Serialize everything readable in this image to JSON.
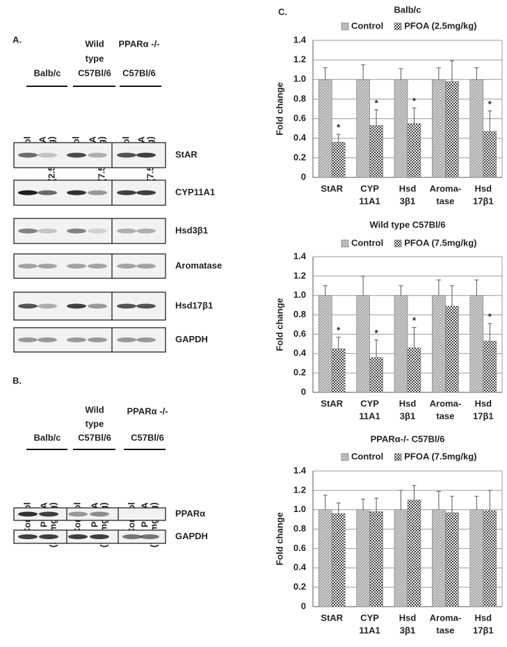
{
  "panel_a": {
    "label": "A.",
    "groups": [
      [
        "Balb/c"
      ],
      [
        "Wild",
        "type",
        "C57Bl/6"
      ],
      [
        "PPARα -/-",
        "C57Bl/6"
      ]
    ],
    "lanes": [
      [
        "Control"
      ],
      [
        "PFOA",
        "(2.5mg/kg)"
      ],
      [
        "Control"
      ],
      [
        "PFOA",
        "(7.5mg/kg)"
      ],
      [
        "Control"
      ],
      [
        "PFOA",
        "(7.5mg/kg)"
      ]
    ],
    "blots": [
      "StAR",
      "CYP11A1",
      "Hsd3β1",
      "Aromatase",
      "Hsd17β1",
      "GAPDH"
    ]
  },
  "panel_b": {
    "label": "B.",
    "groups": [
      [
        "Balb/c"
      ],
      [
        "Wild",
        "type",
        "C57Bl/6"
      ],
      [
        "PPARα -/-",
        "C57Bl/6"
      ]
    ],
    "lanes": [
      [
        "Control"
      ],
      [
        "PFOA",
        "(2.5mg/kg)"
      ],
      [
        "Control"
      ],
      [
        "PFOA",
        "(7.5mg/kg)"
      ],
      [
        "Control"
      ],
      [
        "PFOA",
        "(7.5mg/kg)"
      ]
    ],
    "blots": [
      "PPARα",
      "GAPDH"
    ]
  },
  "panel_c": {
    "label": "C."
  },
  "chart_data": [
    {
      "type": "bar",
      "title": "Balb/c",
      "ylabel": "Fold change",
      "categories": [
        [
          "StAR"
        ],
        [
          "CYP",
          "11A1"
        ],
        [
          "Hsd",
          "3β1"
        ],
        [
          "Aroma-",
          "tase"
        ],
        [
          "Hsd",
          "17β1"
        ]
      ],
      "series": [
        {
          "name": "Control",
          "color": "#a8a8a8",
          "values": [
            1,
            1,
            1,
            1,
            1
          ],
          "errors": [
            0.12,
            0.15,
            0.11,
            0.12,
            0.12
          ]
        },
        {
          "name": "PFOA (2.5mg/kg)",
          "color": "#404040",
          "values": [
            0.36,
            0.53,
            0.55,
            0.98,
            0.47
          ],
          "errors": [
            0.08,
            0.16,
            0.16,
            0.21,
            0.21
          ]
        }
      ],
      "annotations": [
        {
          "text": "*",
          "series": 1,
          "index": 0
        },
        {
          "text": "*",
          "series": 1,
          "index": 1
        },
        {
          "text": "*",
          "series": 1,
          "index": 2
        },
        {
          "text": "*",
          "series": 1,
          "index": 4
        }
      ],
      "ylim": [
        0,
        1.4
      ],
      "yticks": [
        0,
        0.2,
        0.4,
        0.6,
        0.8,
        {
          "value": 1,
          "label": "1.0"
        },
        1.2,
        1.4
      ],
      "grid": true
    },
    {
      "type": "bar",
      "title": "Wild type C57Bl/6",
      "ylabel": "Fold change",
      "categories": [
        [
          "StAR"
        ],
        [
          "CYP",
          "11A1"
        ],
        [
          "Hsd",
          "3β1"
        ],
        [
          "Aroma-",
          "tase"
        ],
        [
          "Hsd",
          "17β1"
        ]
      ],
      "series": [
        {
          "name": "Control",
          "color": "#a8a8a8",
          "values": [
            1,
            1,
            1,
            1,
            1
          ],
          "errors": [
            0.1,
            0.2,
            0.1,
            0.16,
            0.16
          ]
        },
        {
          "name": "PFOA (7.5mg/kg)",
          "color": "#404040",
          "values": [
            0.45,
            0.36,
            0.46,
            0.89,
            0.53
          ],
          "errors": [
            0.12,
            0.18,
            0.21,
            0.21,
            0.18
          ]
        }
      ],
      "annotations": [
        {
          "text": "*",
          "series": 1,
          "index": 0
        },
        {
          "text": "*",
          "series": 1,
          "index": 1
        },
        {
          "text": "*",
          "series": 1,
          "index": 2
        },
        {
          "text": "*",
          "series": 1,
          "index": 4
        }
      ],
      "ylim": [
        0,
        1.4
      ],
      "yticks": [
        0,
        0.2,
        0.4,
        0.6,
        0.8,
        {
          "value": 1,
          "label": "1.0"
        },
        1.2,
        1.4
      ],
      "grid": true
    },
    {
      "type": "bar",
      "title": "PPARα-/- C57Bl/6",
      "ylabel": "Fold change",
      "categories": [
        [
          "StAR"
        ],
        [
          "CYP",
          "11A1"
        ],
        [
          "Hsd",
          "3β1"
        ],
        [
          "Aroma-",
          "tase"
        ],
        [
          "Hsd",
          "17β1"
        ]
      ],
      "series": [
        {
          "name": "Control",
          "color": "#a8a8a8",
          "values": [
            1,
            1,
            1,
            1,
            1
          ],
          "errors": [
            0.15,
            0.11,
            0.2,
            0.19,
            0.14
          ]
        },
        {
          "name": "PFOA (7.5mg/kg)",
          "color": "#404040",
          "values": [
            0.96,
            0.98,
            1.1,
            0.97,
            0.99
          ],
          "errors": [
            0.11,
            0.14,
            0.15,
            0.17,
            0.21
          ]
        }
      ],
      "ylim": [
        0,
        1.4
      ],
      "yticks": [
        0,
        0.2,
        0.4,
        0.6,
        0.8,
        {
          "value": 1,
          "label": "1.0"
        },
        1.2,
        1.4
      ],
      "grid": true
    }
  ]
}
